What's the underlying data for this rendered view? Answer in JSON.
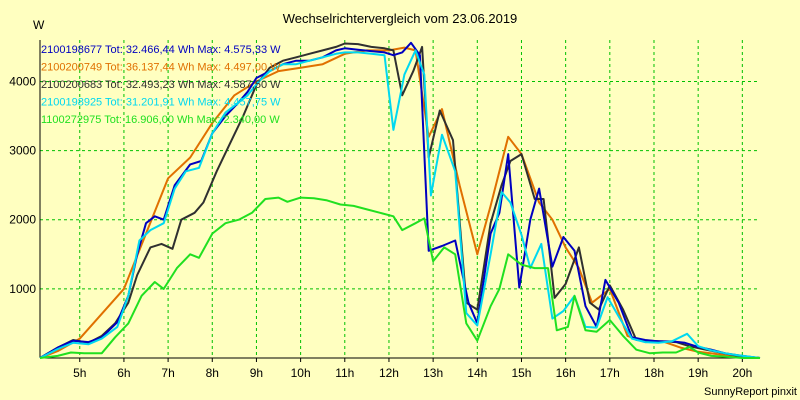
{
  "chart_data": {
    "type": "line",
    "title": "Wechselrichtervergleich vom 23.06.2019",
    "ylabel": "W",
    "xlabel": "",
    "credit": "SunnyReport pinxit",
    "background": "#ffffc0",
    "grid": true,
    "grid_color": "#00c000",
    "legend_placement": "top-left",
    "xlim": [
      4.1,
      20.4
    ],
    "ylim": [
      0,
      4600
    ],
    "xticks": [
      5,
      6,
      7,
      8,
      9,
      10,
      11,
      12,
      13,
      14,
      15,
      16,
      17,
      18,
      19,
      20
    ],
    "xtick_labels": [
      "5h",
      "6h",
      "7h",
      "8h",
      "9h",
      "10h",
      "11h",
      "12h",
      "13h",
      "14h",
      "15h",
      "16h",
      "17h",
      "18h",
      "19h",
      "20h"
    ],
    "yticks": [
      1000,
      2000,
      3000,
      4000
    ],
    "ytick_labels": [
      "1000",
      "2000",
      "3000",
      "4000"
    ],
    "series": [
      {
        "legend_text": "2100198677 Tot: 32.466,44 Wh Max: 4.575,33 W",
        "color": "#0000c0",
        "points": [
          [
            4.1,
            0
          ],
          [
            4.5,
            150
          ],
          [
            4.85,
            250
          ],
          [
            5.2,
            230
          ],
          [
            5.5,
            300
          ],
          [
            5.85,
            520
          ],
          [
            6.1,
            900
          ],
          [
            6.3,
            1500
          ],
          [
            6.5,
            1950
          ],
          [
            6.7,
            2050
          ],
          [
            6.9,
            2000
          ],
          [
            7.15,
            2500
          ],
          [
            7.5,
            2800
          ],
          [
            7.75,
            2850
          ],
          [
            8.0,
            3250
          ],
          [
            8.3,
            3500
          ],
          [
            8.6,
            3700
          ],
          [
            8.8,
            3850
          ],
          [
            9.0,
            4050
          ],
          [
            9.3,
            4150
          ],
          [
            9.6,
            4250
          ],
          [
            9.9,
            4300
          ],
          [
            10.2,
            4300
          ],
          [
            10.5,
            4350
          ],
          [
            10.8,
            4450
          ],
          [
            11.0,
            4480
          ],
          [
            11.3,
            4460
          ],
          [
            11.6,
            4440
          ],
          [
            11.9,
            4420
          ],
          [
            12.1,
            4380
          ],
          [
            12.3,
            4420
          ],
          [
            12.5,
            4560
          ],
          [
            12.7,
            4380
          ],
          [
            12.9,
            1550
          ],
          [
            13.2,
            1620
          ],
          [
            13.5,
            1700
          ],
          [
            13.8,
            800
          ],
          [
            14.0,
            500
          ],
          [
            14.3,
            1800
          ],
          [
            14.5,
            2100
          ],
          [
            14.7,
            2950
          ],
          [
            14.95,
            1020
          ],
          [
            15.2,
            2000
          ],
          [
            15.4,
            2450
          ],
          [
            15.7,
            1320
          ],
          [
            15.95,
            1750
          ],
          [
            16.2,
            1550
          ],
          [
            16.45,
            750
          ],
          [
            16.7,
            450
          ],
          [
            16.9,
            1130
          ],
          [
            17.2,
            800
          ],
          [
            17.5,
            300
          ],
          [
            17.8,
            260
          ],
          [
            18.1,
            240
          ],
          [
            18.4,
            240
          ],
          [
            18.7,
            220
          ],
          [
            19.0,
            160
          ],
          [
            19.3,
            120
          ],
          [
            19.6,
            70
          ],
          [
            19.9,
            40
          ],
          [
            20.2,
            15
          ],
          [
            20.4,
            0
          ]
        ]
      },
      {
        "legend_text": "2100200749 Tot: 36.137,44 Wh Max: 4.497,00 W",
        "color": "#e07000",
        "points": [
          [
            4.1,
            0
          ],
          [
            4.5,
            100
          ],
          [
            5.0,
            280
          ],
          [
            6.0,
            1000
          ],
          [
            6.5,
            1800
          ],
          [
            7.0,
            2600
          ],
          [
            7.5,
            2900
          ],
          [
            8.0,
            3400
          ],
          [
            8.5,
            3800
          ],
          [
            9.0,
            4000
          ],
          [
            9.5,
            4150
          ],
          [
            10.0,
            4200
          ],
          [
            10.5,
            4250
          ],
          [
            11.0,
            4400
          ],
          [
            11.5,
            4450
          ],
          [
            12.0,
            4450
          ],
          [
            12.35,
            4490
          ],
          [
            12.6,
            4450
          ],
          [
            12.9,
            3200
          ],
          [
            13.2,
            3600
          ],
          [
            13.6,
            2500
          ],
          [
            14.0,
            1500
          ],
          [
            14.3,
            2200
          ],
          [
            14.7,
            3200
          ],
          [
            15.0,
            2950
          ],
          [
            15.4,
            2250
          ],
          [
            15.7,
            2000
          ],
          [
            16.0,
            1600
          ],
          [
            16.3,
            1300
          ],
          [
            16.6,
            800
          ],
          [
            17.0,
            1000
          ],
          [
            17.4,
            320
          ],
          [
            17.8,
            230
          ],
          [
            18.2,
            240
          ],
          [
            18.6,
            150
          ],
          [
            19.0,
            90
          ],
          [
            19.5,
            50
          ],
          [
            20.0,
            20
          ],
          [
            20.4,
            0
          ]
        ]
      },
      {
        "legend_text": "2100200683 Tot: 32.493,23 Wh Max: 4.587,50 W",
        "color": "#303030",
        "points": [
          [
            4.1,
            0
          ],
          [
            4.5,
            150
          ],
          [
            4.85,
            260
          ],
          [
            5.2,
            220
          ],
          [
            5.5,
            320
          ],
          [
            5.8,
            500
          ],
          [
            6.1,
            800
          ],
          [
            6.3,
            1200
          ],
          [
            6.6,
            1600
          ],
          [
            6.85,
            1650
          ],
          [
            7.1,
            1580
          ],
          [
            7.3,
            2000
          ],
          [
            7.6,
            2100
          ],
          [
            7.8,
            2250
          ],
          [
            8.1,
            2700
          ],
          [
            8.4,
            3100
          ],
          [
            8.7,
            3500
          ],
          [
            9.0,
            3950
          ],
          [
            9.3,
            4200
          ],
          [
            9.6,
            4300
          ],
          [
            9.9,
            4350
          ],
          [
            10.2,
            4400
          ],
          [
            10.5,
            4450
          ],
          [
            10.8,
            4500
          ],
          [
            11.0,
            4550
          ],
          [
            11.3,
            4540
          ],
          [
            11.6,
            4500
          ],
          [
            11.9,
            4480
          ],
          [
            12.1,
            4450
          ],
          [
            12.3,
            3800
          ],
          [
            12.55,
            4150
          ],
          [
            12.75,
            4500
          ],
          [
            12.9,
            2900
          ],
          [
            13.15,
            3580
          ],
          [
            13.45,
            3150
          ],
          [
            13.75,
            800
          ],
          [
            14.0,
            700
          ],
          [
            14.3,
            1950
          ],
          [
            14.55,
            2500
          ],
          [
            14.75,
            2850
          ],
          [
            15.0,
            2950
          ],
          [
            15.3,
            2300
          ],
          [
            15.5,
            2300
          ],
          [
            15.75,
            870
          ],
          [
            16.0,
            1070
          ],
          [
            16.3,
            1600
          ],
          [
            16.55,
            800
          ],
          [
            16.75,
            700
          ],
          [
            17.0,
            1050
          ],
          [
            17.3,
            700
          ],
          [
            17.6,
            260
          ],
          [
            17.9,
            250
          ],
          [
            18.2,
            240
          ],
          [
            18.5,
            230
          ],
          [
            18.8,
            170
          ],
          [
            19.1,
            130
          ],
          [
            19.5,
            80
          ],
          [
            19.9,
            30
          ],
          [
            20.4,
            0
          ]
        ]
      },
      {
        "legend_text": "2100198925 Tot: 31.201,91 Wh Max: 4.457,75 W",
        "color": "#00d8f0",
        "points": [
          [
            4.1,
            0
          ],
          [
            4.5,
            130
          ],
          [
            4.85,
            220
          ],
          [
            5.2,
            200
          ],
          [
            5.5,
            280
          ],
          [
            5.85,
            450
          ],
          [
            6.1,
            900
          ],
          [
            6.35,
            1700
          ],
          [
            6.6,
            1850
          ],
          [
            6.9,
            1950
          ],
          [
            7.15,
            2450
          ],
          [
            7.4,
            2700
          ],
          [
            7.7,
            2750
          ],
          [
            8.0,
            3250
          ],
          [
            8.3,
            3550
          ],
          [
            8.6,
            3700
          ],
          [
            8.8,
            3800
          ],
          [
            9.05,
            4000
          ],
          [
            9.3,
            4150
          ],
          [
            9.6,
            4250
          ],
          [
            9.9,
            4250
          ],
          [
            10.2,
            4300
          ],
          [
            10.5,
            4350
          ],
          [
            10.8,
            4400
          ],
          [
            11.0,
            4420
          ],
          [
            11.3,
            4420
          ],
          [
            11.6,
            4400
          ],
          [
            11.9,
            4380
          ],
          [
            12.1,
            3300
          ],
          [
            12.35,
            4100
          ],
          [
            12.6,
            4450
          ],
          [
            12.8,
            4100
          ],
          [
            12.95,
            2350
          ],
          [
            13.2,
            3230
          ],
          [
            13.5,
            2700
          ],
          [
            13.75,
            650
          ],
          [
            14.0,
            470
          ],
          [
            14.3,
            1500
          ],
          [
            14.55,
            2400
          ],
          [
            14.75,
            2250
          ],
          [
            15.0,
            1780
          ],
          [
            15.2,
            1300
          ],
          [
            15.45,
            1650
          ],
          [
            15.7,
            570
          ],
          [
            15.95,
            680
          ],
          [
            16.2,
            900
          ],
          [
            16.45,
            450
          ],
          [
            16.7,
            440
          ],
          [
            16.95,
            880
          ],
          [
            17.2,
            600
          ],
          [
            17.5,
            280
          ],
          [
            17.8,
            230
          ],
          [
            18.1,
            220
          ],
          [
            18.4,
            240
          ],
          [
            18.75,
            350
          ],
          [
            19.0,
            170
          ],
          [
            19.3,
            110
          ],
          [
            19.6,
            70
          ],
          [
            19.9,
            40
          ],
          [
            20.4,
            0
          ]
        ]
      },
      {
        "legend_text": "1100272975 Tot: 16.906,00 Wh Max: 2.340,00 W",
        "color": "#20e020",
        "points": [
          [
            4.1,
            0
          ],
          [
            4.5,
            30
          ],
          [
            4.8,
            80
          ],
          [
            5.1,
            70
          ],
          [
            5.5,
            70
          ],
          [
            5.8,
            300
          ],
          [
            6.1,
            500
          ],
          [
            6.4,
            900
          ],
          [
            6.7,
            1100
          ],
          [
            6.9,
            1000
          ],
          [
            7.2,
            1300
          ],
          [
            7.5,
            1500
          ],
          [
            7.7,
            1450
          ],
          [
            8.0,
            1800
          ],
          [
            8.3,
            1950
          ],
          [
            8.6,
            2000
          ],
          [
            8.9,
            2100
          ],
          [
            9.2,
            2300
          ],
          [
            9.5,
            2320
          ],
          [
            9.7,
            2260
          ],
          [
            10.0,
            2320
          ],
          [
            10.3,
            2310
          ],
          [
            10.6,
            2280
          ],
          [
            10.9,
            2220
          ],
          [
            11.2,
            2200
          ],
          [
            11.5,
            2150
          ],
          [
            11.8,
            2100
          ],
          [
            12.1,
            2050
          ],
          [
            12.3,
            1850
          ],
          [
            12.6,
            1950
          ],
          [
            12.8,
            2020
          ],
          [
            13.0,
            1400
          ],
          [
            13.25,
            1600
          ],
          [
            13.5,
            1500
          ],
          [
            13.75,
            500
          ],
          [
            14.0,
            250
          ],
          [
            14.3,
            750
          ],
          [
            14.5,
            1000
          ],
          [
            14.7,
            1500
          ],
          [
            15.0,
            1350
          ],
          [
            15.3,
            1300
          ],
          [
            15.6,
            1300
          ],
          [
            15.8,
            400
          ],
          [
            16.05,
            450
          ],
          [
            16.2,
            900
          ],
          [
            16.45,
            400
          ],
          [
            16.7,
            380
          ],
          [
            17.0,
            550
          ],
          [
            17.3,
            320
          ],
          [
            17.6,
            120
          ],
          [
            17.9,
            70
          ],
          [
            18.2,
            80
          ],
          [
            18.5,
            80
          ],
          [
            18.8,
            160
          ],
          [
            19.0,
            80
          ],
          [
            19.3,
            30
          ],
          [
            19.6,
            20
          ],
          [
            20.0,
            0
          ],
          [
            20.4,
            0
          ]
        ]
      }
    ]
  }
}
